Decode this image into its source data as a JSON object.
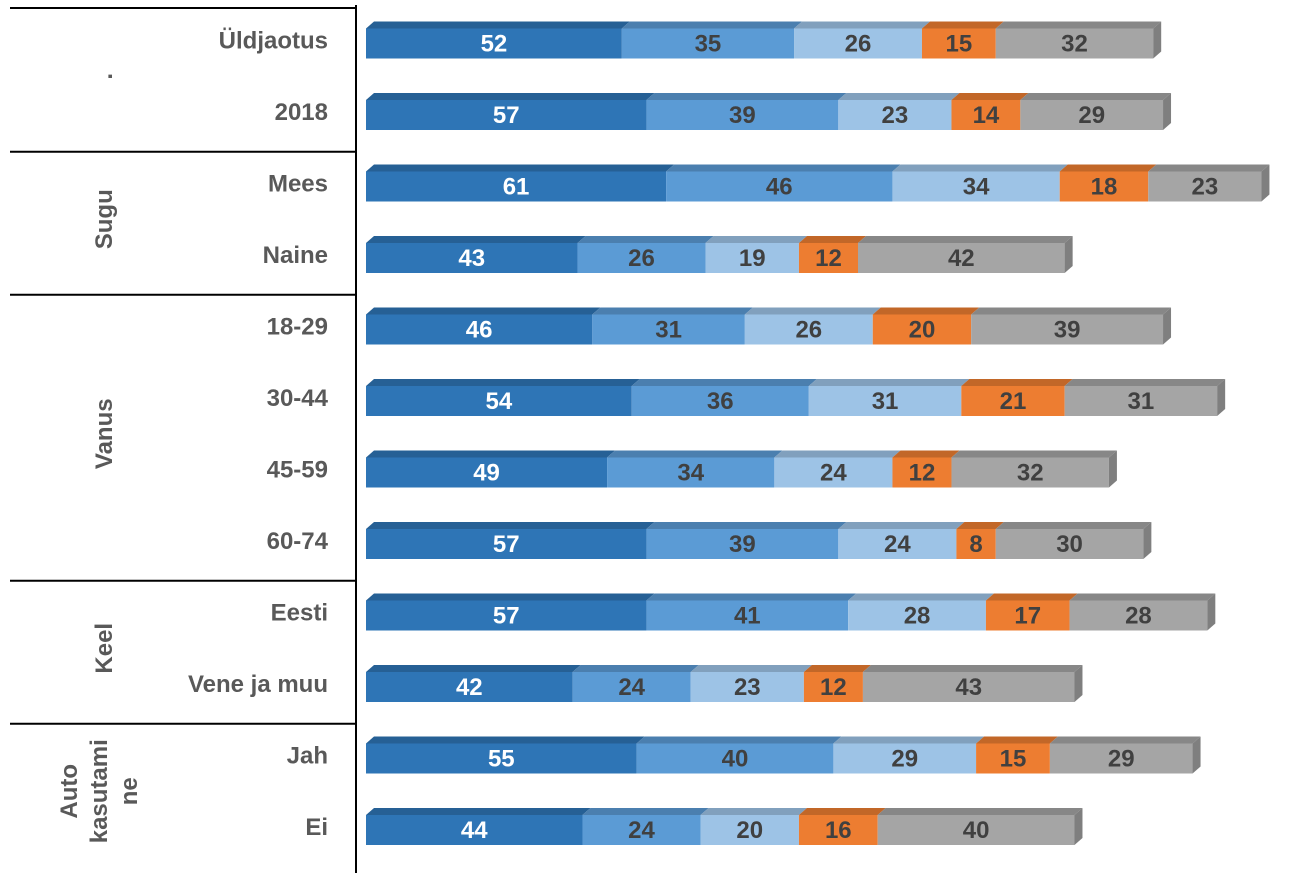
{
  "chart_data": {
    "type": "bar",
    "orientation": "horizontal",
    "stacked": true,
    "colors": [
      "#2E75B6",
      "#5B9BD5",
      "#9DC3E6",
      "#ED7D31",
      "#A5A5A5"
    ],
    "label_colors": [
      "#FFFFFF",
      "#404040",
      "#404040",
      "#404040",
      "#404040"
    ],
    "groups": [
      {
        "label": ".",
        "rows": [
          {
            "label": "Üldjaotus",
            "values": [
              52,
              35,
              26,
              15,
              32
            ]
          },
          {
            "label": "2018",
            "values": [
              57,
              39,
              23,
              14,
              29
            ]
          }
        ]
      },
      {
        "label": "Sugu",
        "rows": [
          {
            "label": "Mees",
            "values": [
              61,
              46,
              34,
              18,
              23
            ]
          },
          {
            "label": "Naine",
            "values": [
              43,
              26,
              19,
              12,
              42
            ]
          }
        ]
      },
      {
        "label": "Vanus",
        "rows": [
          {
            "label": "18-29",
            "values": [
              46,
              31,
              26,
              20,
              39
            ]
          },
          {
            "label": "30-44",
            "values": [
              54,
              36,
              31,
              21,
              31
            ]
          },
          {
            "label": "45-59",
            "values": [
              49,
              34,
              24,
              12,
              32
            ]
          },
          {
            "label": "60-74",
            "values": [
              57,
              39,
              24,
              8,
              30
            ]
          }
        ]
      },
      {
        "label": "Keel",
        "rows": [
          {
            "label": "Eesti",
            "values": [
              57,
              41,
              28,
              17,
              28
            ]
          },
          {
            "label": "Vene ja muu",
            "values": [
              42,
              24,
              23,
              12,
              43
            ]
          }
        ]
      },
      {
        "label": "Auto kasutamine",
        "label_lines": [
          "Auto",
          "kasutami",
          "ne"
        ],
        "rows": [
          {
            "label": "Jah",
            "values": [
              55,
              40,
              29,
              15,
              29
            ]
          },
          {
            "label": "Ei",
            "values": [
              44,
              24,
              20,
              16,
              40
            ]
          }
        ]
      }
    ]
  }
}
